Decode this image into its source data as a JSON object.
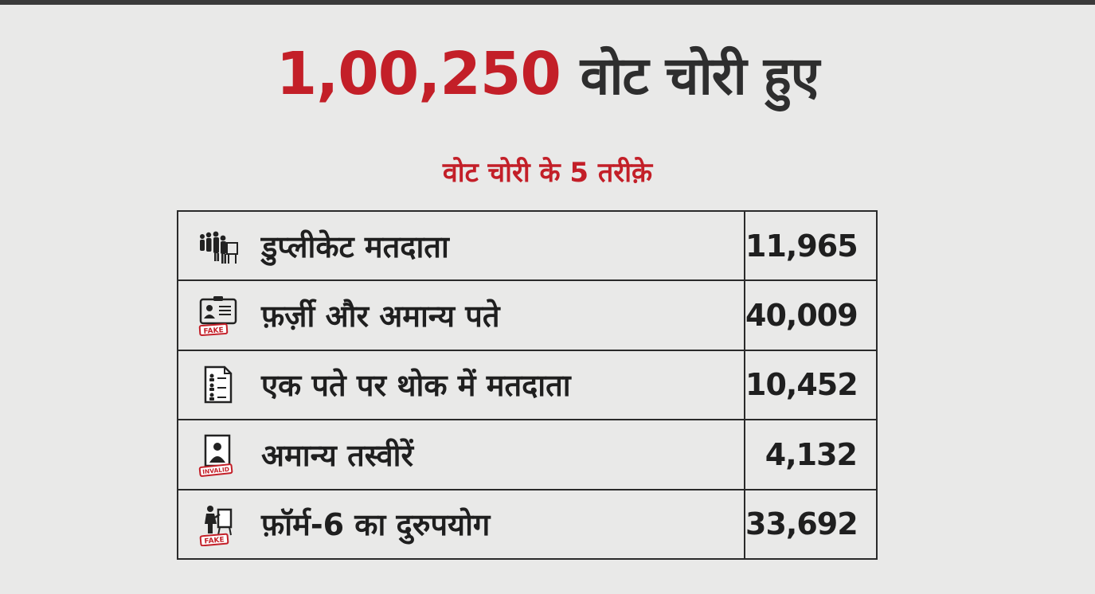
{
  "headline": {
    "number": "1,00,250",
    "text": "वोट चोरी हुए"
  },
  "subtitle": "वोट चोरी के 5 तरीक़े",
  "rows": [
    {
      "icon": "people-queue-voting-icon",
      "label": "डुप्लीकेट मतदाता",
      "value": "11,965"
    },
    {
      "icon": "fake-id-card-icon",
      "label": "फ़र्ज़ी और अमान्य पते",
      "value": "40,009"
    },
    {
      "icon": "voter-list-document-icon",
      "label": "एक पते पर थोक में मतदाता",
      "value": "10,452"
    },
    {
      "icon": "invalid-photo-icon",
      "label": "अमान्य तस्वीरें",
      "value": "4,132"
    },
    {
      "icon": "fake-form-icon",
      "label": "फ़ॉर्म-6 का दुरुपयोग",
      "value": "33,692"
    }
  ],
  "stamps": {
    "fake": "FAKE",
    "invalid": "INVALID"
  },
  "colors": {
    "accent": "#c31f28",
    "text": "#1f1f1f",
    "background": "#e9e9e8"
  }
}
